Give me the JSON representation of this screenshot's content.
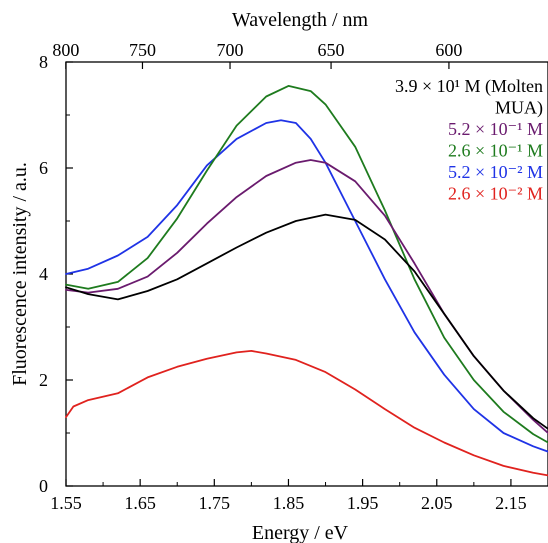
{
  "chart_data": {
    "type": "line",
    "xlabel": "Energy / eV",
    "ylabel": "Fluorescence intensity / a.u.",
    "top_axis_label": "Wavelength / nm",
    "xlim": [
      1.55,
      2.2
    ],
    "ylim": [
      0,
      8
    ],
    "x_ticks": [
      1.55,
      1.65,
      1.75,
      1.85,
      1.95,
      2.05,
      2.15
    ],
    "x_tick_labels": [
      "1.55",
      "1.65",
      "1.75",
      "1.85",
      "1.95",
      "2.05",
      "2.15"
    ],
    "y_ticks": [
      0,
      2,
      4,
      6,
      8
    ],
    "y_tick_labels": [
      "0",
      "2",
      "4",
      "6",
      "8"
    ],
    "top_ticks_nm": [
      800,
      750,
      700,
      650,
      600
    ],
    "top_tick_labels": [
      "800",
      "750",
      "700",
      "650",
      "600"
    ],
    "legend_position": "top-right",
    "grid": false,
    "series": [
      {
        "label_lines": [
          "3.9 × 10¹ M (Molten",
          "MUA)"
        ],
        "color": "#000000",
        "x": [
          1.55,
          1.58,
          1.62,
          1.66,
          1.7,
          1.74,
          1.78,
          1.82,
          1.86,
          1.9,
          1.94,
          1.98,
          2.02,
          2.06,
          2.1,
          2.14,
          2.18,
          2.2
        ],
        "y": [
          3.75,
          3.62,
          3.52,
          3.68,
          3.9,
          4.2,
          4.5,
          4.78,
          5.0,
          5.12,
          5.02,
          4.65,
          4.05,
          3.25,
          2.45,
          1.8,
          1.28,
          1.08
        ]
      },
      {
        "label_lines": [
          "5.2 × 10⁻¹ M"
        ],
        "color": "#6a1b6e",
        "x": [
          1.55,
          1.58,
          1.62,
          1.66,
          1.7,
          1.74,
          1.78,
          1.82,
          1.86,
          1.88,
          1.9,
          1.94,
          1.98,
          2.02,
          2.06,
          2.1,
          2.14,
          2.18,
          2.2
        ],
        "y": [
          3.7,
          3.65,
          3.72,
          3.95,
          4.4,
          4.95,
          5.45,
          5.85,
          6.1,
          6.15,
          6.1,
          5.75,
          5.1,
          4.2,
          3.25,
          2.45,
          1.8,
          1.25,
          1.0
        ]
      },
      {
        "label_lines": [
          "2.6 × 10⁻¹ M"
        ],
        "color": "#1e7b1e",
        "x": [
          1.55,
          1.58,
          1.62,
          1.66,
          1.7,
          1.74,
          1.78,
          1.82,
          1.85,
          1.88,
          1.9,
          1.94,
          1.98,
          2.02,
          2.06,
          2.1,
          2.14,
          2.18,
          2.2
        ],
        "y": [
          3.8,
          3.72,
          3.85,
          4.3,
          5.05,
          5.95,
          6.8,
          7.35,
          7.55,
          7.45,
          7.2,
          6.4,
          5.2,
          3.9,
          2.8,
          2.0,
          1.4,
          0.98,
          0.82
        ]
      },
      {
        "label_lines": [
          "5.2 × 10⁻² M"
        ],
        "color": "#1f33e6",
        "x": [
          1.55,
          1.58,
          1.62,
          1.66,
          1.7,
          1.74,
          1.78,
          1.82,
          1.84,
          1.86,
          1.88,
          1.9,
          1.94,
          1.98,
          2.02,
          2.06,
          2.1,
          2.14,
          2.18,
          2.2
        ],
        "y": [
          4.0,
          4.1,
          4.35,
          4.7,
          5.3,
          6.05,
          6.55,
          6.85,
          6.9,
          6.85,
          6.55,
          6.1,
          5.0,
          3.9,
          2.9,
          2.1,
          1.45,
          1.0,
          0.75,
          0.65
        ]
      },
      {
        "label_lines": [
          "2.6 × 10⁻² M"
        ],
        "color": "#e0221e",
        "x": [
          1.55,
          1.56,
          1.58,
          1.62,
          1.66,
          1.7,
          1.74,
          1.78,
          1.8,
          1.82,
          1.86,
          1.9,
          1.94,
          1.98,
          2.02,
          2.06,
          2.1,
          2.14,
          2.18,
          2.2
        ],
        "y": [
          1.3,
          1.5,
          1.62,
          1.75,
          2.05,
          2.25,
          2.4,
          2.52,
          2.55,
          2.5,
          2.38,
          2.15,
          1.82,
          1.45,
          1.1,
          0.82,
          0.58,
          0.38,
          0.25,
          0.2
        ]
      }
    ]
  }
}
